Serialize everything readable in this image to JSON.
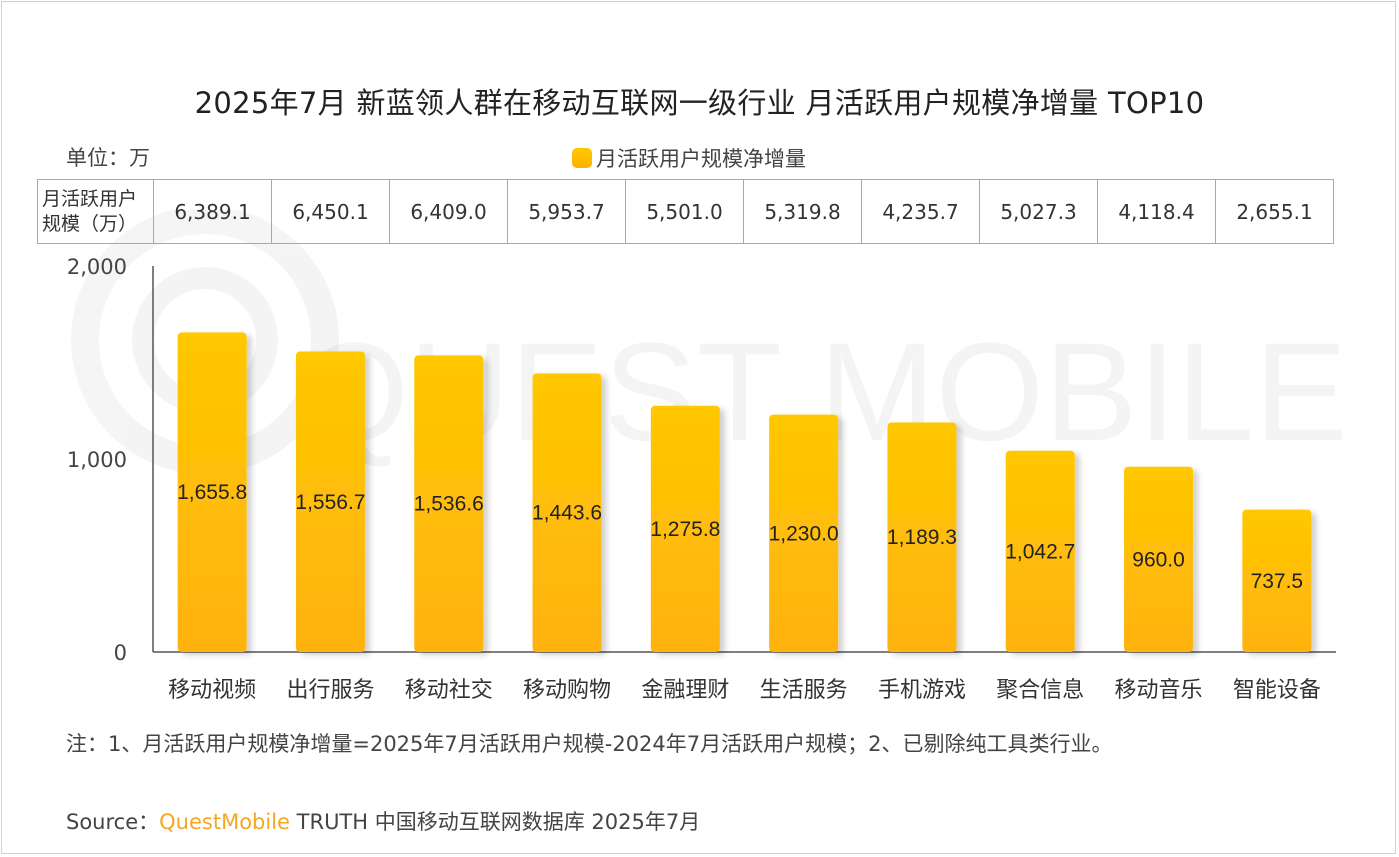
{
  "title": "2025年7月 新蓝领人群在移动互联网一级行业 月活跃用户规模净增量 TOP10",
  "unit_label": "单位：万",
  "legend_label": "月活跃用户规模净增量",
  "table": {
    "header": "月活跃用户规模（万）",
    "values": [
      "6,389.1",
      "6,450.1",
      "6,409.0",
      "5,953.7",
      "5,501.0",
      "5,319.8",
      "4,235.7",
      "5,027.3",
      "4,118.4",
      "2,655.1"
    ]
  },
  "watermark": "QUEST MOBILE",
  "note": "注：1、月活跃用户规模净增量=2025年7月活跃用户规模-2024年7月活跃用户规模；2、已剔除纯工具类行业。",
  "source": {
    "prefix": "Source：",
    "brand": "QuestMobile",
    "suffix": " TRUTH 中国移动互联网数据库 2025年7月"
  },
  "colors": {
    "bar_top": "#ffc800",
    "bar_bottom": "#ffb210",
    "brand": "#f5a623"
  },
  "chart_data": {
    "type": "bar",
    "categories": [
      "移动视频",
      "出行服务",
      "移动社交",
      "移动购物",
      "金融理财",
      "生活服务",
      "手机游戏",
      "聚合信息",
      "移动音乐",
      "智能设备"
    ],
    "series": [
      {
        "name": "月活跃用户规模净增量",
        "values": [
          1655.8,
          1556.7,
          1536.6,
          1443.6,
          1275.8,
          1230.0,
          1189.3,
          1042.7,
          960.0,
          737.5
        ],
        "labels": [
          "1,655.8",
          "1,556.7",
          "1,536.6",
          "1,443.6",
          "1,275.8",
          "1,230.0",
          "1,189.3",
          "1,042.7",
          "960.0",
          "737.5"
        ]
      }
    ],
    "ylim": [
      0,
      2000
    ],
    "yticks": [
      0,
      1000,
      2000
    ],
    "ytick_labels": [
      "0",
      "1,000",
      "2,000"
    ],
    "xlabel": "",
    "ylabel": "",
    "grid": false,
    "legend_position": "top-center"
  }
}
